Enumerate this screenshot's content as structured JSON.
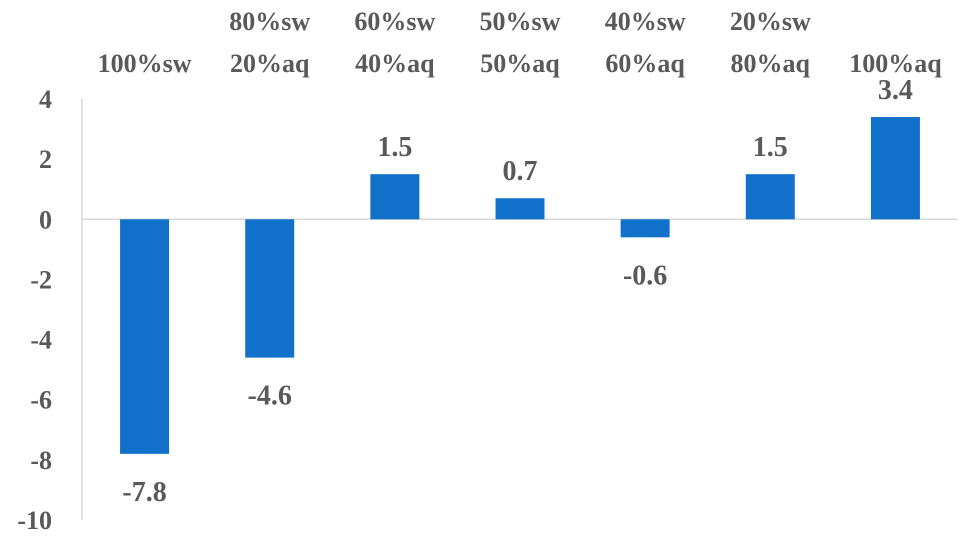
{
  "chart_data": {
    "type": "bar",
    "categories": [
      [
        "100%sw"
      ],
      [
        "80%sw",
        "20%aq"
      ],
      [
        "60%sw",
        "40%aq"
      ],
      [
        "50%sw",
        "50%aq"
      ],
      [
        "40%sw",
        "60%aq"
      ],
      [
        "20%sw",
        "80%aq"
      ],
      [
        "100%aq"
      ]
    ],
    "values": [
      -7.8,
      -4.6,
      1.5,
      0.7,
      -0.6,
      1.5,
      3.4
    ],
    "data_labels": [
      "-7.8",
      "-4.6",
      "1.5",
      "0.7",
      "-0.6",
      "1.5",
      "3.4"
    ],
    "y_ticks": [
      "4",
      "2",
      "0",
      "-2",
      "-4",
      "-6",
      "-8",
      "-10"
    ],
    "ylim": [
      -10,
      4
    ],
    "title": "",
    "xlabel": "",
    "ylabel": "",
    "grid": false,
    "category_axis_position": "top",
    "bar_color": "#1070CA",
    "text_color": "#595959"
  }
}
